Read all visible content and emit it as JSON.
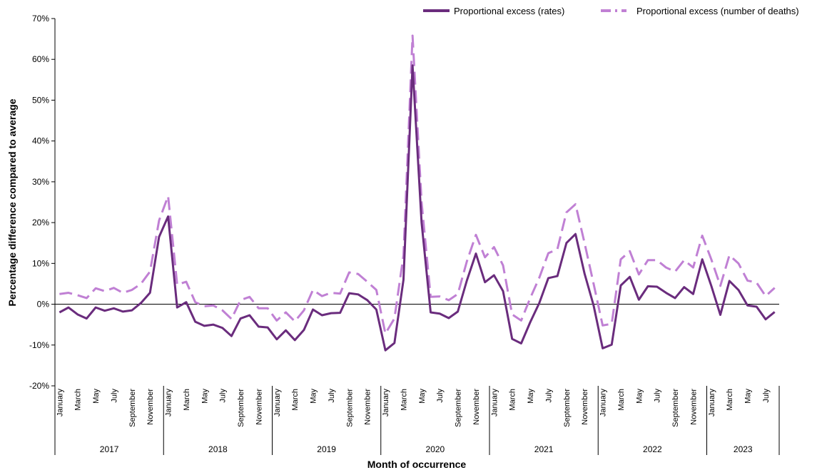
{
  "chart_data": {
    "type": "line",
    "xlabel": "Month of occurrence",
    "ylabel": "Percentage difference compared to average",
    "ylim": [
      -20,
      70
    ],
    "yticks": [
      -20,
      -10,
      0,
      10,
      20,
      30,
      40,
      50,
      60,
      70
    ],
    "ytick_labels": [
      "-20%",
      "-10%",
      "0%",
      "10%",
      "20%",
      "30%",
      "40%",
      "50%",
      "60%",
      "70%"
    ],
    "grid": false,
    "legend_position": "top-right",
    "years": [
      "2017",
      "2018",
      "2019",
      "2020",
      "2021",
      "2022",
      "2023"
    ],
    "months_per_year": [
      12,
      12,
      12,
      12,
      12,
      12,
      8
    ],
    "month_tick_labels": [
      "January",
      "March",
      "May",
      "July",
      "September",
      "November"
    ],
    "series": [
      {
        "name": "Proportional excess (rates)",
        "color": "#6a2c7d",
        "style": "solid",
        "values": [
          -2.0,
          -0.8,
          -2.5,
          -3.5,
          -0.8,
          -1.6,
          -1.0,
          -1.8,
          -1.5,
          0.3,
          2.8,
          16.5,
          21.5,
          -0.8,
          0.5,
          -4.3,
          -5.3,
          -5.0,
          -5.8,
          -7.8,
          -3.5,
          -2.7,
          -5.5,
          -5.7,
          -8.6,
          -6.4,
          -8.8,
          -6.3,
          -1.3,
          -2.7,
          -2.2,
          -2.1,
          2.7,
          2.4,
          1.0,
          -1.3,
          -11.3,
          -9.5,
          6.0,
          58.5,
          20.0,
          -2.0,
          -2.3,
          -3.4,
          -1.8,
          5.8,
          12.4,
          5.4,
          7.1,
          3.2,
          -8.5,
          -9.6,
          -4.4,
          0.3,
          6.4,
          6.9,
          15.0,
          17.2,
          7.5,
          -0.3,
          -10.8,
          -9.9,
          4.6,
          6.7,
          1.1,
          4.4,
          4.3,
          2.8,
          1.5,
          4.2,
          2.5,
          11.0,
          4.5,
          -2.6,
          5.7,
          3.5,
          -0.3,
          -0.6,
          -3.7,
          -1.9
        ]
      },
      {
        "name": "Proportional excess (number of deaths)",
        "color": "#c080d4",
        "style": "dashed",
        "values": [
          2.5,
          2.8,
          2.2,
          1.5,
          3.9,
          3.2,
          4.0,
          2.8,
          3.5,
          5.0,
          8.0,
          20.5,
          26.5,
          4.8,
          5.5,
          0.5,
          -0.5,
          -0.3,
          -1.5,
          -3.6,
          1.0,
          1.8,
          -1.0,
          -1.0,
          -4.0,
          -2.0,
          -4.2,
          -1.5,
          3.5,
          2.0,
          2.8,
          2.6,
          7.8,
          7.4,
          5.5,
          3.5,
          -7.2,
          -3.5,
          12.0,
          65.8,
          25.0,
          1.8,
          1.9,
          1.0,
          2.5,
          10.5,
          17.0,
          11.5,
          14.0,
          9.5,
          -2.5,
          -4.0,
          1.5,
          6.5,
          12.5,
          13.5,
          22.5,
          24.5,
          15.0,
          5.0,
          -5.2,
          -4.8,
          11.0,
          13.0,
          7.3,
          10.8,
          10.8,
          9.0,
          8.0,
          10.8,
          9.0,
          16.8,
          11.0,
          4.5,
          12.0,
          10.0,
          5.8,
          5.3,
          2.0,
          4.0
        ]
      }
    ]
  }
}
